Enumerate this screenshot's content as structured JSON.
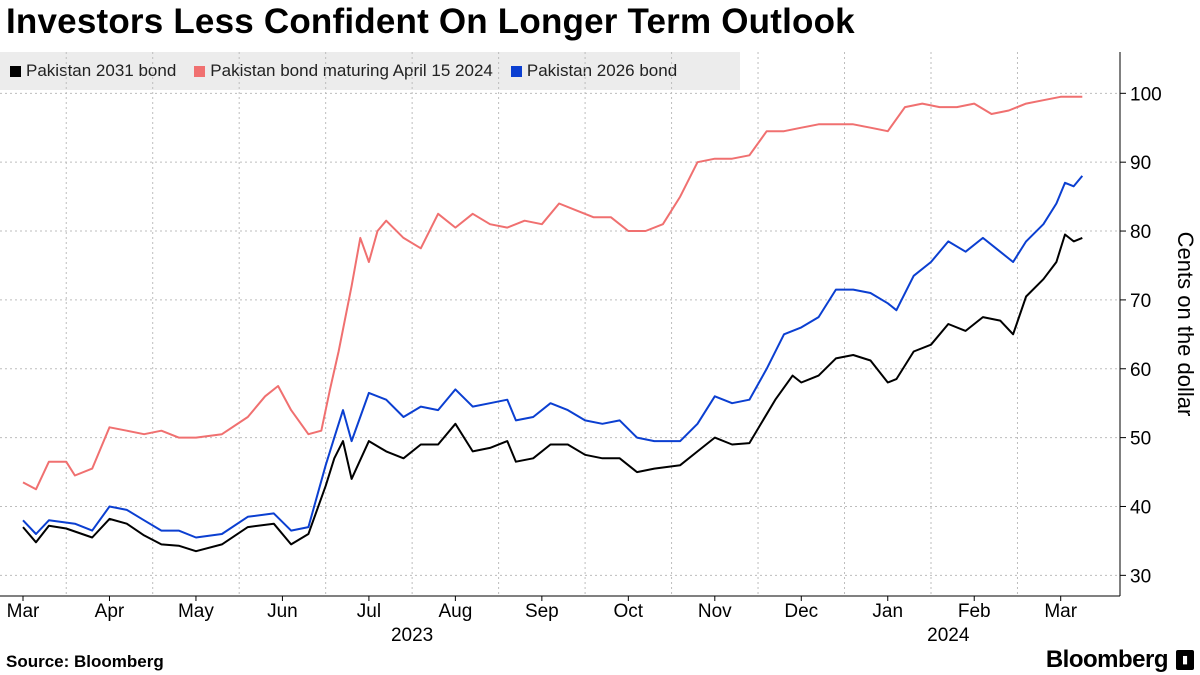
{
  "title": "Investors Less Confident On Longer Term Outlook",
  "footer": {
    "source": "Source: Bloomberg",
    "brand": "Bloomberg"
  },
  "colors": {
    "series_2031": "#000000",
    "series_2024": "#f07070",
    "series_2026": "#0b3fd1",
    "grid": "#bdbdbd",
    "legend_bg": "#ececec"
  },
  "chart_data": {
    "type": "line",
    "title": "Investors Less Confident On Longer Term Outlook",
    "ylabel": "Cents on the dollar",
    "xlabel": "",
    "ylim": [
      27,
      106
    ],
    "yticks": [
      30,
      40,
      50,
      60,
      70,
      80,
      90,
      100
    ],
    "xlim": [
      0,
      12.2
    ],
    "month_ticks": [
      {
        "x": 0,
        "label": "Mar"
      },
      {
        "x": 1,
        "label": "Apr"
      },
      {
        "x": 2,
        "label": "May"
      },
      {
        "x": 3,
        "label": "Jun"
      },
      {
        "x": 4,
        "label": "Jul"
      },
      {
        "x": 5,
        "label": "Aug"
      },
      {
        "x": 6,
        "label": "Sep"
      },
      {
        "x": 7,
        "label": "Oct"
      },
      {
        "x": 8,
        "label": "Nov"
      },
      {
        "x": 9,
        "label": "Dec"
      },
      {
        "x": 10,
        "label": "Jan"
      },
      {
        "x": 11,
        "label": "Feb"
      },
      {
        "x": 12,
        "label": "Mar"
      }
    ],
    "year_labels": [
      {
        "x": 4.5,
        "label": "2023"
      },
      {
        "x": 10.7,
        "label": "2024"
      }
    ],
    "legend_position": "top-left",
    "series": [
      {
        "name": "Pakistan 2031 bond",
        "color": "#000000",
        "points": [
          [
            0,
            37
          ],
          [
            0.15,
            34.8
          ],
          [
            0.3,
            37.2
          ],
          [
            0.5,
            36.8
          ],
          [
            0.8,
            35.5
          ],
          [
            1.0,
            38.2
          ],
          [
            1.2,
            37.5
          ],
          [
            1.4,
            35.8
          ],
          [
            1.6,
            34.5
          ],
          [
            1.8,
            34.3
          ],
          [
            2.0,
            33.5
          ],
          [
            2.3,
            34.5
          ],
          [
            2.6,
            37
          ],
          [
            2.9,
            37.5
          ],
          [
            3.1,
            34.5
          ],
          [
            3.3,
            36
          ],
          [
            3.5,
            43
          ],
          [
            3.6,
            47
          ],
          [
            3.7,
            49.5
          ],
          [
            3.8,
            44
          ],
          [
            4.0,
            49.5
          ],
          [
            4.2,
            48
          ],
          [
            4.4,
            47
          ],
          [
            4.6,
            49
          ],
          [
            4.8,
            49
          ],
          [
            5.0,
            52
          ],
          [
            5.2,
            48
          ],
          [
            5.4,
            48.5
          ],
          [
            5.6,
            49.5
          ],
          [
            5.7,
            46.5
          ],
          [
            5.9,
            47
          ],
          [
            6.1,
            49
          ],
          [
            6.3,
            49
          ],
          [
            6.5,
            47.5
          ],
          [
            6.7,
            47
          ],
          [
            6.9,
            47
          ],
          [
            7.1,
            45
          ],
          [
            7.3,
            45.5
          ],
          [
            7.6,
            46
          ],
          [
            7.8,
            48
          ],
          [
            8.0,
            50
          ],
          [
            8.2,
            49
          ],
          [
            8.4,
            49.2
          ],
          [
            8.7,
            55.5
          ],
          [
            8.9,
            59
          ],
          [
            9.0,
            58
          ],
          [
            9.2,
            59
          ],
          [
            9.4,
            61.5
          ],
          [
            9.6,
            62
          ],
          [
            9.8,
            61.2
          ],
          [
            10.0,
            58
          ],
          [
            10.1,
            58.5
          ],
          [
            10.3,
            62.5
          ],
          [
            10.5,
            63.5
          ],
          [
            10.7,
            66.5
          ],
          [
            10.9,
            65.5
          ],
          [
            11.1,
            67.5
          ],
          [
            11.3,
            67
          ],
          [
            11.45,
            65
          ],
          [
            11.6,
            70.5
          ],
          [
            11.8,
            73
          ],
          [
            11.95,
            75.5
          ],
          [
            12.05,
            79.5
          ],
          [
            12.15,
            78.5
          ],
          [
            12.25,
            79
          ]
        ]
      },
      {
        "name": "Pakistan bond maturing April 15 2024",
        "color": "#f07070",
        "points": [
          [
            0,
            43.5
          ],
          [
            0.15,
            42.5
          ],
          [
            0.3,
            46.5
          ],
          [
            0.5,
            46.5
          ],
          [
            0.6,
            44.5
          ],
          [
            0.8,
            45.5
          ],
          [
            1.0,
            51.5
          ],
          [
            1.2,
            51
          ],
          [
            1.4,
            50.5
          ],
          [
            1.6,
            51
          ],
          [
            1.8,
            50
          ],
          [
            2.0,
            50
          ],
          [
            2.3,
            50.5
          ],
          [
            2.6,
            53
          ],
          [
            2.8,
            56
          ],
          [
            2.95,
            57.5
          ],
          [
            3.1,
            54
          ],
          [
            3.3,
            50.5
          ],
          [
            3.45,
            51
          ],
          [
            3.55,
            57
          ],
          [
            3.65,
            62.5
          ],
          [
            3.8,
            72
          ],
          [
            3.9,
            79
          ],
          [
            4.0,
            75.5
          ],
          [
            4.1,
            80
          ],
          [
            4.2,
            81.5
          ],
          [
            4.4,
            79
          ],
          [
            4.6,
            77.5
          ],
          [
            4.8,
            82.5
          ],
          [
            5.0,
            80.5
          ],
          [
            5.2,
            82.5
          ],
          [
            5.4,
            81
          ],
          [
            5.6,
            80.5
          ],
          [
            5.8,
            81.5
          ],
          [
            6.0,
            81
          ],
          [
            6.2,
            84
          ],
          [
            6.4,
            83
          ],
          [
            6.6,
            82
          ],
          [
            6.8,
            82
          ],
          [
            7.0,
            80
          ],
          [
            7.2,
            80
          ],
          [
            7.4,
            81
          ],
          [
            7.6,
            85
          ],
          [
            7.8,
            90
          ],
          [
            8.0,
            90.5
          ],
          [
            8.2,
            90.5
          ],
          [
            8.4,
            91
          ],
          [
            8.6,
            94.5
          ],
          [
            8.8,
            94.5
          ],
          [
            9.0,
            95
          ],
          [
            9.2,
            95.5
          ],
          [
            9.4,
            95.5
          ],
          [
            9.6,
            95.5
          ],
          [
            9.8,
            95
          ],
          [
            10.0,
            94.5
          ],
          [
            10.2,
            98
          ],
          [
            10.4,
            98.5
          ],
          [
            10.6,
            98
          ],
          [
            10.8,
            98
          ],
          [
            11.0,
            98.5
          ],
          [
            11.2,
            97
          ],
          [
            11.4,
            97.5
          ],
          [
            11.6,
            98.5
          ],
          [
            11.8,
            99
          ],
          [
            12.0,
            99.5
          ],
          [
            12.2,
            99.5
          ],
          [
            12.25,
            99.5
          ]
        ]
      },
      {
        "name": "Pakistan 2026 bond",
        "color": "#0b3fd1",
        "points": [
          [
            0,
            38
          ],
          [
            0.15,
            36
          ],
          [
            0.3,
            38
          ],
          [
            0.6,
            37.5
          ],
          [
            0.8,
            36.5
          ],
          [
            1.0,
            40
          ],
          [
            1.2,
            39.5
          ],
          [
            1.4,
            38
          ],
          [
            1.6,
            36.5
          ],
          [
            1.8,
            36.5
          ],
          [
            2.0,
            35.5
          ],
          [
            2.3,
            36
          ],
          [
            2.6,
            38.5
          ],
          [
            2.9,
            39
          ],
          [
            3.1,
            36.5
          ],
          [
            3.3,
            37
          ],
          [
            3.5,
            46
          ],
          [
            3.6,
            50
          ],
          [
            3.7,
            54
          ],
          [
            3.8,
            49.5
          ],
          [
            4.0,
            56.5
          ],
          [
            4.2,
            55.5
          ],
          [
            4.4,
            53
          ],
          [
            4.6,
            54.5
          ],
          [
            4.8,
            54
          ],
          [
            5.0,
            57
          ],
          [
            5.2,
            54.5
          ],
          [
            5.4,
            55
          ],
          [
            5.6,
            55.5
          ],
          [
            5.7,
            52.5
          ],
          [
            5.9,
            53
          ],
          [
            6.1,
            55
          ],
          [
            6.3,
            54
          ],
          [
            6.5,
            52.5
          ],
          [
            6.7,
            52
          ],
          [
            6.9,
            52.5
          ],
          [
            7.1,
            50
          ],
          [
            7.3,
            49.5
          ],
          [
            7.6,
            49.5
          ],
          [
            7.8,
            52
          ],
          [
            8.0,
            56
          ],
          [
            8.2,
            55
          ],
          [
            8.4,
            55.5
          ],
          [
            8.6,
            60
          ],
          [
            8.8,
            65
          ],
          [
            9.0,
            66
          ],
          [
            9.2,
            67.5
          ],
          [
            9.4,
            71.5
          ],
          [
            9.6,
            71.5
          ],
          [
            9.8,
            71
          ],
          [
            10.0,
            69.5
          ],
          [
            10.1,
            68.5
          ],
          [
            10.3,
            73.5
          ],
          [
            10.5,
            75.5
          ],
          [
            10.7,
            78.5
          ],
          [
            10.9,
            77
          ],
          [
            11.1,
            79
          ],
          [
            11.3,
            77
          ],
          [
            11.45,
            75.5
          ],
          [
            11.6,
            78.5
          ],
          [
            11.8,
            81
          ],
          [
            11.95,
            84
          ],
          [
            12.05,
            87
          ],
          [
            12.15,
            86.5
          ],
          [
            12.25,
            88
          ]
        ]
      }
    ]
  }
}
